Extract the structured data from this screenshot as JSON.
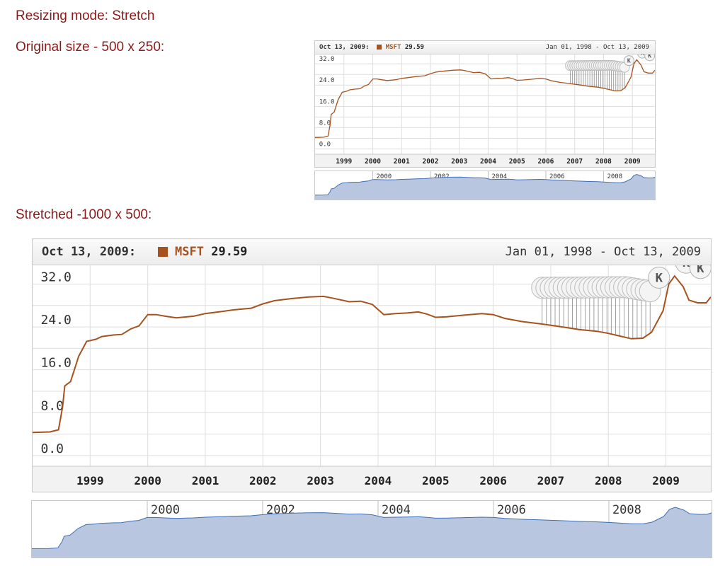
{
  "headings": {
    "mode": "Resizing mode: Stretch",
    "original": "Original size - 500 x 250:",
    "stretched": "Stretched -1000 x 500:"
  },
  "chart_header": {
    "date": "Oct 13, 2009:",
    "date_small": "Oct 13, 2009:",
    "symbol": "MSFT",
    "value": "29.59",
    "range": "Jan 01, 1998 - Oct 13, 2009",
    "range_small": "Jan 01, 1998 - Oct 13, 2009"
  },
  "colors": {
    "line": "#a7521e",
    "heading": "#8b1a1a",
    "nav_line": "#3f6fb5",
    "nav_fill": "#b9c6df"
  },
  "flag_letter": "K",
  "chart_data": {
    "type": "line",
    "series": [
      {
        "name": "MSFT",
        "points": [
          [
            1998.0,
            4.3
          ],
          [
            1998.3,
            4.4
          ],
          [
            1998.45,
            4.8
          ],
          [
            1998.52,
            9.0
          ],
          [
            1998.56,
            13.0
          ],
          [
            1998.66,
            13.8
          ],
          [
            1998.8,
            18.5
          ],
          [
            1998.94,
            21.3
          ],
          [
            1999.1,
            21.7
          ],
          [
            1999.2,
            22.2
          ],
          [
            1999.4,
            22.5
          ],
          [
            1999.55,
            22.6
          ],
          [
            1999.7,
            23.6
          ],
          [
            1999.85,
            24.2
          ],
          [
            2000.0,
            26.3
          ],
          [
            2000.15,
            26.3
          ],
          [
            2000.3,
            26.0
          ],
          [
            2000.5,
            25.7
          ],
          [
            2000.8,
            26.0
          ],
          [
            2001.0,
            26.5
          ],
          [
            2001.3,
            26.9
          ],
          [
            2001.5,
            27.2
          ],
          [
            2001.8,
            27.5
          ],
          [
            2002.0,
            28.3
          ],
          [
            2002.2,
            28.9
          ],
          [
            2002.5,
            29.3
          ],
          [
            2002.8,
            29.6
          ],
          [
            2003.05,
            29.7
          ],
          [
            2003.2,
            29.4
          ],
          [
            2003.5,
            28.7
          ],
          [
            2003.7,
            28.8
          ],
          [
            2003.9,
            28.2
          ],
          [
            2004.1,
            26.3
          ],
          [
            2004.3,
            26.5
          ],
          [
            2004.5,
            26.6
          ],
          [
            2004.7,
            26.8
          ],
          [
            2004.85,
            26.4
          ],
          [
            2005.0,
            25.8
          ],
          [
            2005.2,
            25.9
          ],
          [
            2005.5,
            26.2
          ],
          [
            2005.8,
            26.5
          ],
          [
            2006.0,
            26.3
          ],
          [
            2006.2,
            25.6
          ],
          [
            2006.5,
            25.0
          ],
          [
            2006.8,
            24.6
          ],
          [
            2007.0,
            24.3
          ],
          [
            2007.2,
            24.0
          ],
          [
            2007.5,
            23.5
          ],
          [
            2007.8,
            23.2
          ],
          [
            2008.0,
            22.8
          ],
          [
            2008.2,
            22.3
          ],
          [
            2008.4,
            21.8
          ],
          [
            2008.6,
            21.9
          ],
          [
            2008.75,
            23.0
          ],
          [
            2008.95,
            27.0
          ],
          [
            2009.05,
            32.0
          ],
          [
            2009.15,
            33.5
          ],
          [
            2009.3,
            31.5
          ],
          [
            2009.4,
            29.0
          ],
          [
            2009.55,
            28.5
          ],
          [
            2009.7,
            28.5
          ],
          [
            2009.78,
            29.6
          ]
        ]
      }
    ],
    "x_tick_labels": [
      "1999",
      "2000",
      "2001",
      "2002",
      "2003",
      "2004",
      "2005",
      "2006",
      "2007",
      "2008",
      "2009"
    ],
    "x_ticks": [
      1999,
      2000,
      2001,
      2002,
      2003,
      2004,
      2005,
      2006,
      2007,
      2008,
      2009
    ],
    "y_tick_labels": [
      "0.0",
      "8.0",
      "16.0",
      "24.0",
      "32.0"
    ],
    "y_ticks": [
      0,
      8,
      16,
      24,
      32
    ],
    "xlim": [
      1998.0,
      2009.78
    ],
    "ylim": [
      -2,
      35.5
    ],
    "grid": true,
    "navigator_labels": [
      "2000",
      "2002",
      "2004",
      "2006",
      "2008"
    ],
    "navigator_ticks": [
      2000,
      2002,
      2004,
      2006,
      2008
    ]
  }
}
